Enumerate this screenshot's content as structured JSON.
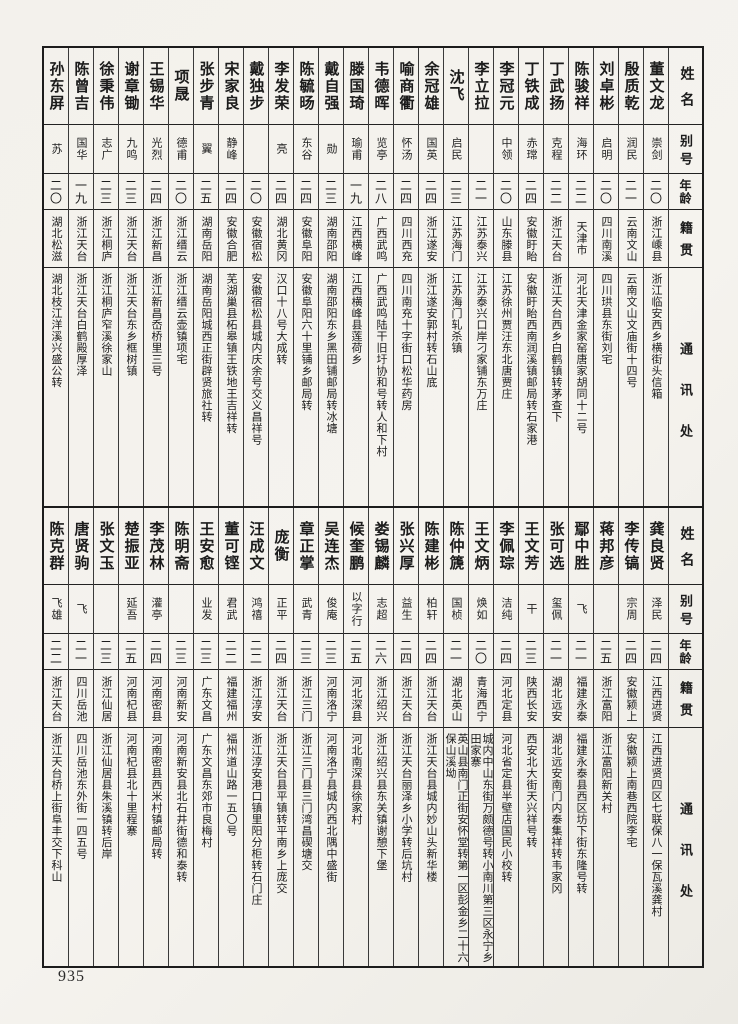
{
  "page_number": "935",
  "headers": {
    "name": "姓名",
    "alias": "别号",
    "age": "年龄",
    "native": "籍贯",
    "address": "通讯处"
  },
  "sections": [
    {
      "entries": [
        {
          "name": "董文龙",
          "alias": "崇剑",
          "age": "二〇",
          "native": "浙江嵊县",
          "address": "浙江临安西乡横街头信箱"
        },
        {
          "name": "殷质乾",
          "alias": "润民",
          "age": "二一",
          "native": "云南文山",
          "address": "云南文山文庙街十四号"
        },
        {
          "name": "刘卓彬",
          "alias": "启明",
          "age": "二〇",
          "native": "四川南溪",
          "address": "四川珙县东街刘宅"
        },
        {
          "name": "陈骏祥",
          "alias": "海环",
          "age": "二二",
          "native": "天津市",
          "address": "河北天津金家窑唐家胡同十二号"
        },
        {
          "name": "丁武扬",
          "alias": "克程",
          "age": "二二",
          "native": "浙江天台",
          "address": "浙江天台西乡白鹤镇转茅查下"
        },
        {
          "name": "丁铁成",
          "alias": "赤瑺",
          "age": "二四",
          "native": "安徽盱眙",
          "address": "安徽盱眙西南润溪镇邮局转石家港"
        },
        {
          "name": "李冠元",
          "alias": "中领",
          "age": "二〇",
          "native": "山东滕县",
          "address": "江苏徐州贾汪东北唐贾庄"
        },
        {
          "name": "李立拉",
          "alias": "",
          "age": "二一",
          "native": "江苏泰兴",
          "address": "江苏泰兴口岸刁家铺东万庄"
        },
        {
          "name": "沈飞",
          "alias": "启民",
          "age": "二三",
          "native": "江苏海门",
          "address": "江苏海门轧杀镇"
        },
        {
          "name": "余冠雄",
          "alias": "国英",
          "age": "二四",
          "native": "浙江遂安",
          "address": "浙江遂安郭村转石山底"
        },
        {
          "name": "喻商衢",
          "alias": "怀汤",
          "age": "二四",
          "native": "四川西充",
          "address": "四川南充十字街口松华药房"
        },
        {
          "name": "韦德晖",
          "alias": "览亭",
          "age": "二八",
          "native": "广西武鸣",
          "address": "广西武鸣陆干旧圩协和号转人和下村"
        },
        {
          "name": "滕国琦",
          "alias": "瑜甫",
          "age": "一九",
          "native": "江西横峰",
          "address": "江西横峰县莲荷乡"
        },
        {
          "name": "戴自强",
          "alias": "勋",
          "age": "二三",
          "native": "湖南邵阳",
          "address": "湖南邵阳东乡黑田铺邮局转冰塘"
        },
        {
          "name": "陈毓旸",
          "alias": "东谷",
          "age": "二四",
          "native": "安徽阜阳",
          "address": "安徽阜阳六十里铺乡邮局转"
        },
        {
          "name": "李发荣",
          "alias": "亮",
          "age": "二四",
          "native": "湖北黄冈",
          "address": "汉口十八号大成转"
        },
        {
          "name": "戴独步",
          "alias": "",
          "age": "二〇",
          "native": "安徽宿松",
          "address": "安徽宿松县城内庆余号交义昌祥号"
        },
        {
          "name": "宋家良",
          "alias": "静峰",
          "age": "二四",
          "native": "安徽合肥",
          "address": "芜湖巢县柘皋镇王铁地王吉祥转"
        },
        {
          "name": "张步青",
          "alias": "翼",
          "age": "二五",
          "native": "湖南岳阳",
          "address": "湖南岳阳城西正街辟贤旅社转"
        },
        {
          "name": "项晟",
          "alias": "德甫",
          "age": "二〇",
          "native": "浙江缙云",
          "address": "浙江缙云壶镇项宅"
        },
        {
          "name": "王锡华",
          "alias": "光烈",
          "age": "二四",
          "native": "浙江新昌",
          "address": "浙江新昌岙桥里三号"
        },
        {
          "name": "谢章锄",
          "alias": "九鸣",
          "age": "二三",
          "native": "浙江天台",
          "address": "浙江天台东乡框树镇"
        },
        {
          "name": "徐秉伟",
          "alias": "志广",
          "age": "二三",
          "native": "浙江桐庐",
          "address": "浙江桐庐窄溪徐家山"
        },
        {
          "name": "陈曾吉",
          "alias": "国华",
          "age": "一九",
          "native": "浙江天台",
          "address": "浙江天台白鹤殿厚泽"
        },
        {
          "name": "孙东屏",
          "alias": "苏",
          "age": "二〇",
          "native": "湖北松滋",
          "address": "湖北枝江洋溪兴盛公转"
        }
      ]
    },
    {
      "entries": [
        {
          "name": "龚良贤",
          "alias": "泽民",
          "age": "二四",
          "native": "江西进贤",
          "address": "江西进贤四区七联保八一保瓦溪龚村"
        },
        {
          "name": "李传镐",
          "alias": "宗周",
          "age": "二四",
          "native": "安徽颍上",
          "address": "安徽颍上南巷西院李宅"
        },
        {
          "name": "蒋邦彦",
          "alias": "",
          "age": "二五",
          "native": "浙江富阳",
          "address": "浙江富阳新关村"
        },
        {
          "name": "鄢中胜",
          "alias": "飞",
          "age": "二一",
          "native": "福建永泰",
          "address": "福建永泰县西区坊下街东隆号转"
        },
        {
          "name": "张可选",
          "alias": "玺佩",
          "age": "二一",
          "native": "湖北远安",
          "address": "湖北远安南门内泰集祥转韦家冈"
        },
        {
          "name": "王文芳",
          "alias": "干",
          "age": "二三",
          "native": "陕西长安",
          "address": "西安北大街天兴祥号转"
        },
        {
          "name": "李佩琮",
          "alias": "洁纯",
          "age": "二四",
          "native": "河北定县",
          "address": "河北省定县半壁店国民小校转"
        },
        {
          "name": "王文炳",
          "alias": "焕如",
          "age": "二〇",
          "native": "青海西宁",
          "address": "城内中山东街万颇德号转小南川第三区永宁乡田家寨"
        },
        {
          "name": "陈仲篪",
          "alias": "国桢",
          "age": "二一",
          "native": "湖北英山",
          "address": "英山县南门正街安怀堂转第一区彭金乡二十六保山溪坳"
        },
        {
          "name": "陈建彬",
          "alias": "柏轩",
          "age": "二四",
          "native": "浙江天台",
          "address": "浙江天台县城内妙山头新华楼"
        },
        {
          "name": "张兴厚",
          "alias": "益生",
          "age": "二四",
          "native": "浙江天台",
          "address": "浙江天台丽泽乡小学转后坑村"
        },
        {
          "name": "娄锡麟",
          "alias": "志超",
          "age": "二六",
          "native": "浙江绍兴",
          "address": "浙江绍兴县东关镇谢憩下堡"
        },
        {
          "name": "候奎鹏",
          "alias": "以字行",
          "age": "二五",
          "native": "河北深县",
          "address": "河北南深县徐家村"
        },
        {
          "name": "吴连杰",
          "alias": "俊庵",
          "age": "二三",
          "native": "河南洛宁",
          "address": "河南洛宁县城内西北隅中盛街"
        },
        {
          "name": "章正掌",
          "alias": "武青",
          "age": "二三",
          "native": "浙江三门",
          "address": "浙江三门县三门湾昌碶塘交"
        },
        {
          "name": "庞衡",
          "alias": "正平",
          "age": "二四",
          "native": "浙江天台",
          "address": "浙江天台县平镇转平南乡上庞交"
        },
        {
          "name": "汪成文",
          "alias": "鸿禧",
          "age": "二二",
          "native": "浙江淳安",
          "address": "浙江淳安港口镇里阳分柜转石门庄"
        },
        {
          "name": "董可铿",
          "alias": "君武",
          "age": "二二",
          "native": "福建福州",
          "address": "福州道山路一五〇号"
        },
        {
          "name": "王安愈",
          "alias": "业发",
          "age": "二三",
          "native": "广东文昌",
          "address": "广东文昌东郊市良梅村"
        },
        {
          "name": "陈明斋",
          "alias": "",
          "age": "二三",
          "native": "河南新安",
          "address": "河南新安县北石井街德和泰转"
        },
        {
          "name": "李茂林",
          "alias": "灌亭",
          "age": "二四",
          "native": "河南密县",
          "address": "河南密县西米村镇邮局转"
        },
        {
          "name": "楚振亚",
          "alias": "延吾",
          "age": "二五",
          "native": "河南杞县",
          "address": "河南杞县北十里程寨"
        },
        {
          "name": "张文玉",
          "alias": "",
          "age": "二三",
          "native": "浙江仙居",
          "address": "浙江仙居县朱溪镇转后岸"
        },
        {
          "name": "唐贤驹",
          "alias": "飞",
          "age": "二一",
          "native": "四川岳池",
          "address": "四川岳池东外街一四五号"
        },
        {
          "name": "陈克群",
          "alias": "飞雄",
          "age": "二二",
          "native": "浙江天台",
          "address": "浙江天台桥上街阜丰交下科山"
        }
      ]
    }
  ]
}
